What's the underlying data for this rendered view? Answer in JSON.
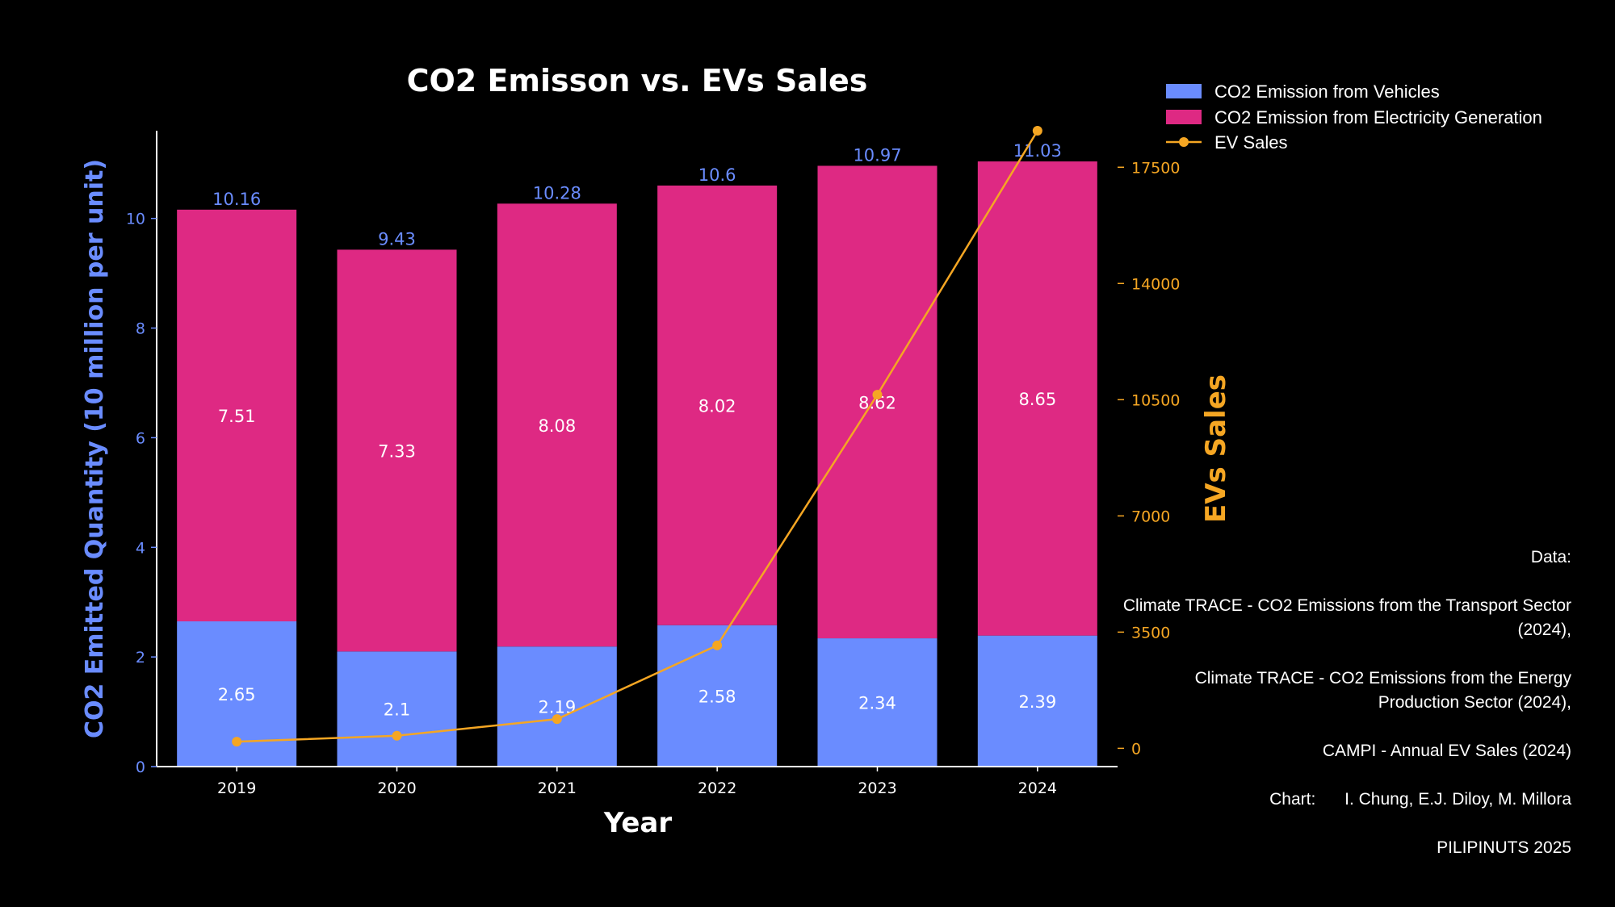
{
  "chart_data": {
    "type": "bar",
    "title": "CO2 Emisson vs. EVs Sales",
    "xlabel": "Year",
    "ylabel": "CO2 Emitted Quantity (10 million per unit)",
    "y2label": "EVs Sales",
    "categories": [
      "2019",
      "2020",
      "2021",
      "2022",
      "2023",
      "2024"
    ],
    "ylim": [
      0,
      11.6
    ],
    "yticks": [
      0,
      2,
      4,
      6,
      8,
      10
    ],
    "y2lim": [
      -550,
      18600
    ],
    "y2ticks": [
      0,
      3500,
      7000,
      10500,
      14000,
      17500
    ],
    "series": [
      {
        "name": "CO2 Emission from Vehicles",
        "kind": "bar",
        "color": "#6a8cff",
        "values": [
          2.65,
          2.1,
          2.19,
          2.58,
          2.34,
          2.39
        ]
      },
      {
        "name": "CO2 Emission from Electricity Generation",
        "kind": "bar",
        "color": "#de2983",
        "values": [
          7.51,
          7.33,
          8.08,
          8.02,
          8.62,
          8.65
        ]
      },
      {
        "name": "EV Sales",
        "kind": "line",
        "axis": "right",
        "color": "#f5a623",
        "values": [
          200,
          380,
          880,
          3100,
          10650,
          18600
        ]
      }
    ],
    "totals": [
      "10.16",
      "9.43",
      "10.28",
      "10.6",
      "10.97",
      "11.03"
    ],
    "legend": "top-right"
  },
  "credits": {
    "data_label": "Data:",
    "source_1": "Climate TRACE - CO2 Emissions from the Transport Sector (2024),",
    "source_2": "Climate TRACE - CO2 Emissions from the Energy Production Sector (2024),",
    "source_3": "CAMPI - Annual EV Sales (2024)",
    "chart_label": "Chart:",
    "chart_authors": "I. Chung, E.J. Diloy, M. Millora",
    "footer": "PILIPINUTS 2025"
  },
  "colors": {
    "background": "#000000",
    "left_axis": "#6a8cff",
    "right_axis": "#f5a623",
    "text": "#ffffff"
  }
}
